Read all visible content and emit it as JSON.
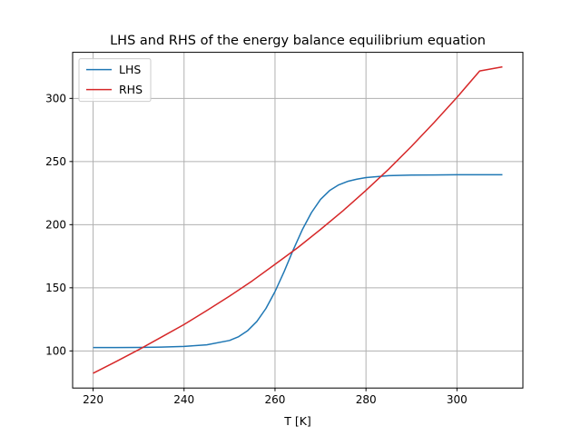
{
  "chart_data": {
    "type": "line",
    "title": "LHS and RHS of the energy balance equilibrium equation",
    "xlabel": "T [K]",
    "ylabel": "",
    "xlim": [
      215.5,
      314.5
    ],
    "ylim": [
      70.6,
      336.5
    ],
    "xticks": [
      220,
      240,
      260,
      280,
      300
    ],
    "yticks": [
      100,
      150,
      200,
      250,
      300
    ],
    "grid": true,
    "legend_position": "top-left",
    "series": [
      {
        "name": "LHS",
        "color": "#1f77b4",
        "x": [
          220,
          225,
          230,
          235,
          240,
          245,
          250,
          252,
          254,
          256,
          258,
          260,
          262,
          264,
          266,
          268,
          270,
          272,
          274,
          276,
          278,
          280,
          285,
          290,
          295,
          300,
          305,
          310
        ],
        "y": [
          102.7,
          102.7,
          102.8,
          103.0,
          103.6,
          104.8,
          108.3,
          111.3,
          116.1,
          123.3,
          133.6,
          147.0,
          162.8,
          180.0,
          196.0,
          209.5,
          220.0,
          227.0,
          231.5,
          234.3,
          236.0,
          237.3,
          238.8,
          239.3,
          239.4,
          239.5,
          239.5,
          239.5
        ]
      },
      {
        "name": "RHS",
        "color": "#d62728",
        "x": [
          220,
          225,
          230,
          235,
          240,
          245,
          250,
          255,
          260,
          265,
          270,
          275,
          280,
          285,
          290,
          295,
          300,
          305,
          310
        ],
        "y": [
          82.3,
          91.5,
          100.9,
          110.9,
          120.9,
          132.0,
          143.4,
          155.5,
          168.6,
          181.8,
          196.2,
          211.2,
          227.2,
          244.0,
          262.0,
          281.0,
          300.8,
          321.7,
          325.0
        ]
      }
    ]
  }
}
